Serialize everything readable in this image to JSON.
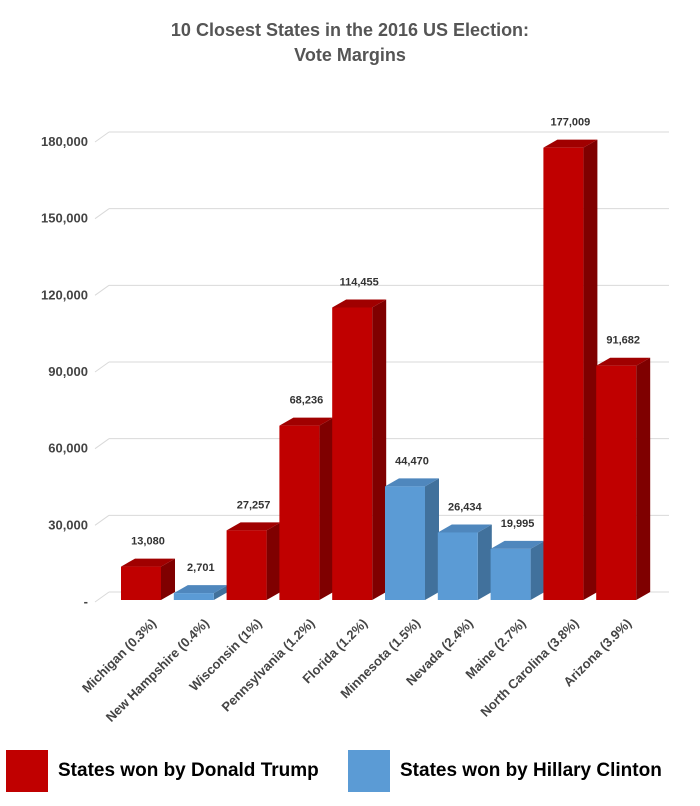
{
  "title_line1": "10 Closest States in the 2016 US Election:",
  "title_line2": "Vote Margins",
  "legend": {
    "trump_label": "States won by Donald Trump",
    "clinton_label": "States won by Hillary Clinton"
  },
  "colors": {
    "trump_front": "#c00000",
    "trump_side": "#7f0000",
    "trump_top": "#a00000",
    "clinton_front": "#5b9bd5",
    "clinton_side": "#41719c",
    "clinton_top": "#4f87bd",
    "grid": "#d9d9d9"
  },
  "chart_data": {
    "type": "bar",
    "title": "10 Closest States in the 2016 US Election: Vote Margins",
    "categories": [
      "Michigan (0.3%)",
      "New Hampshire (0.4%)",
      "Wisconsin (1%)",
      "Pennsylvania (1.2%)",
      "Florida (1.2%)",
      "Minnesota (1.5%)",
      "Nevada (2.4%)",
      "Maine (2.7%)",
      "North Carolina (3.8%)",
      "Arizona (3.9%)"
    ],
    "values": [
      13080,
      2701,
      27257,
      68236,
      114455,
      44470,
      26434,
      19995,
      177009,
      91682
    ],
    "value_labels": [
      "13,080",
      "2,701",
      "27,257",
      "68,236",
      "114,455",
      "44,470",
      "26,434",
      "19,995",
      "177,009",
      "91,682"
    ],
    "winner": [
      "Trump",
      "Clinton",
      "Trump",
      "Trump",
      "Trump",
      "Clinton",
      "Clinton",
      "Clinton",
      "Trump",
      "Trump"
    ],
    "y_ticks": [
      0,
      30000,
      60000,
      90000,
      120000,
      150000,
      180000
    ],
    "y_tick_labels": [
      "-",
      "30,000",
      "60,000",
      "90,000",
      "120,000",
      "150,000",
      "180,000"
    ],
    "ylim": [
      0,
      180000
    ],
    "xlabel": "",
    "ylabel": "",
    "grid": true,
    "legend_position": "bottom"
  }
}
